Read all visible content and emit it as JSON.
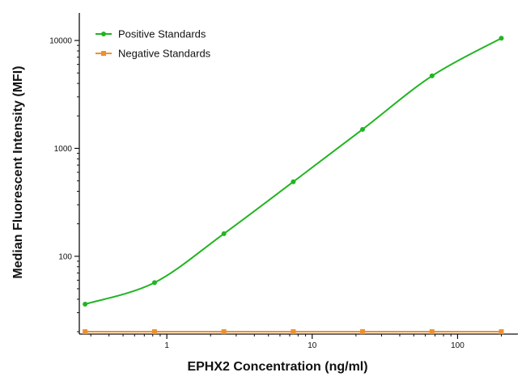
{
  "chart_data": {
    "type": "line",
    "xlabel": "EPHX2 Concentration (ng/ml)",
    "ylabel": "Median Fluorescent Intensity (MFI)",
    "x_scale": "log",
    "y_scale": "log",
    "xlim": [
      0.25,
      260
    ],
    "ylim": [
      19,
      18000
    ],
    "x_ticks": [
      1,
      10,
      100
    ],
    "x_tick_labels": [
      "1",
      "10",
      "100"
    ],
    "y_ticks": [
      100,
      1000,
      10000
    ],
    "y_tick_labels": [
      "100",
      "1000",
      "10000"
    ],
    "grid": false,
    "legend_position": "top-left",
    "series": [
      {
        "name": "Positive Standards",
        "color": "#22b422",
        "marker": "circle",
        "x": [
          0.274,
          0.823,
          2.47,
          7.41,
          22.2,
          66.7,
          200
        ],
        "y": [
          36,
          57,
          162,
          490,
          1500,
          4700,
          10500
        ]
      },
      {
        "name": "Negative Standards",
        "color": "#f0902a",
        "marker": "square",
        "x": [
          0.274,
          0.823,
          2.47,
          7.41,
          22.2,
          66.7,
          200
        ],
        "y": [
          20,
          20,
          20,
          20,
          20,
          20,
          20
        ]
      }
    ]
  }
}
